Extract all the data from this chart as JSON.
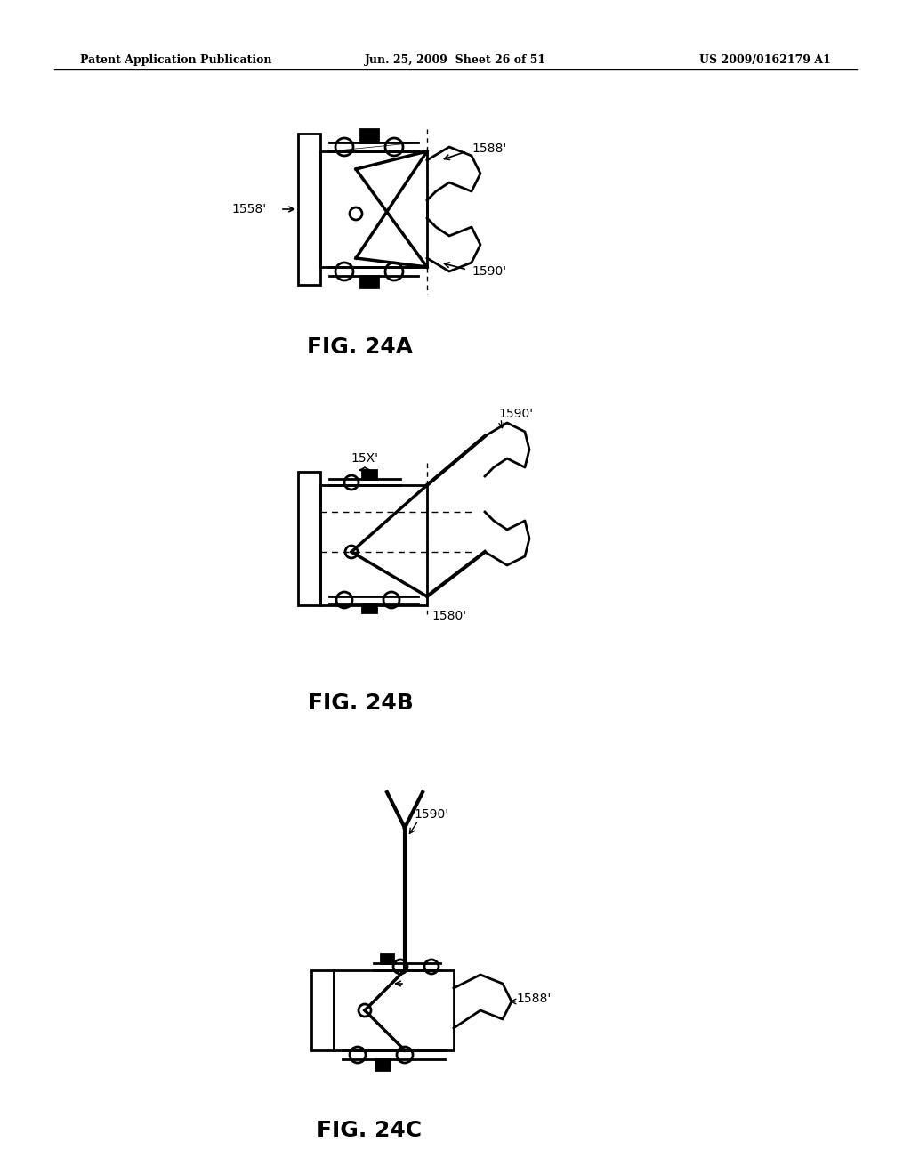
{
  "background_color": "#ffffff",
  "header_left": "Patent Application Publication",
  "header_mid": "Jun. 25, 2009  Sheet 26 of 51",
  "header_right": "US 2009/0162179 A1",
  "fig_24a_label": "FIG. 24A",
  "fig_24b_label": "FIG. 24B",
  "fig_24c_label": "FIG. 24C",
  "label_1558": "1558'",
  "label_1588_a": "1588'",
  "label_1590_a": "1590'",
  "label_15x": "15X'",
  "label_1590_b": "1590'",
  "label_1580_b": "1580'",
  "label_1590_c": "1590'",
  "label_1588_c": "1588'"
}
